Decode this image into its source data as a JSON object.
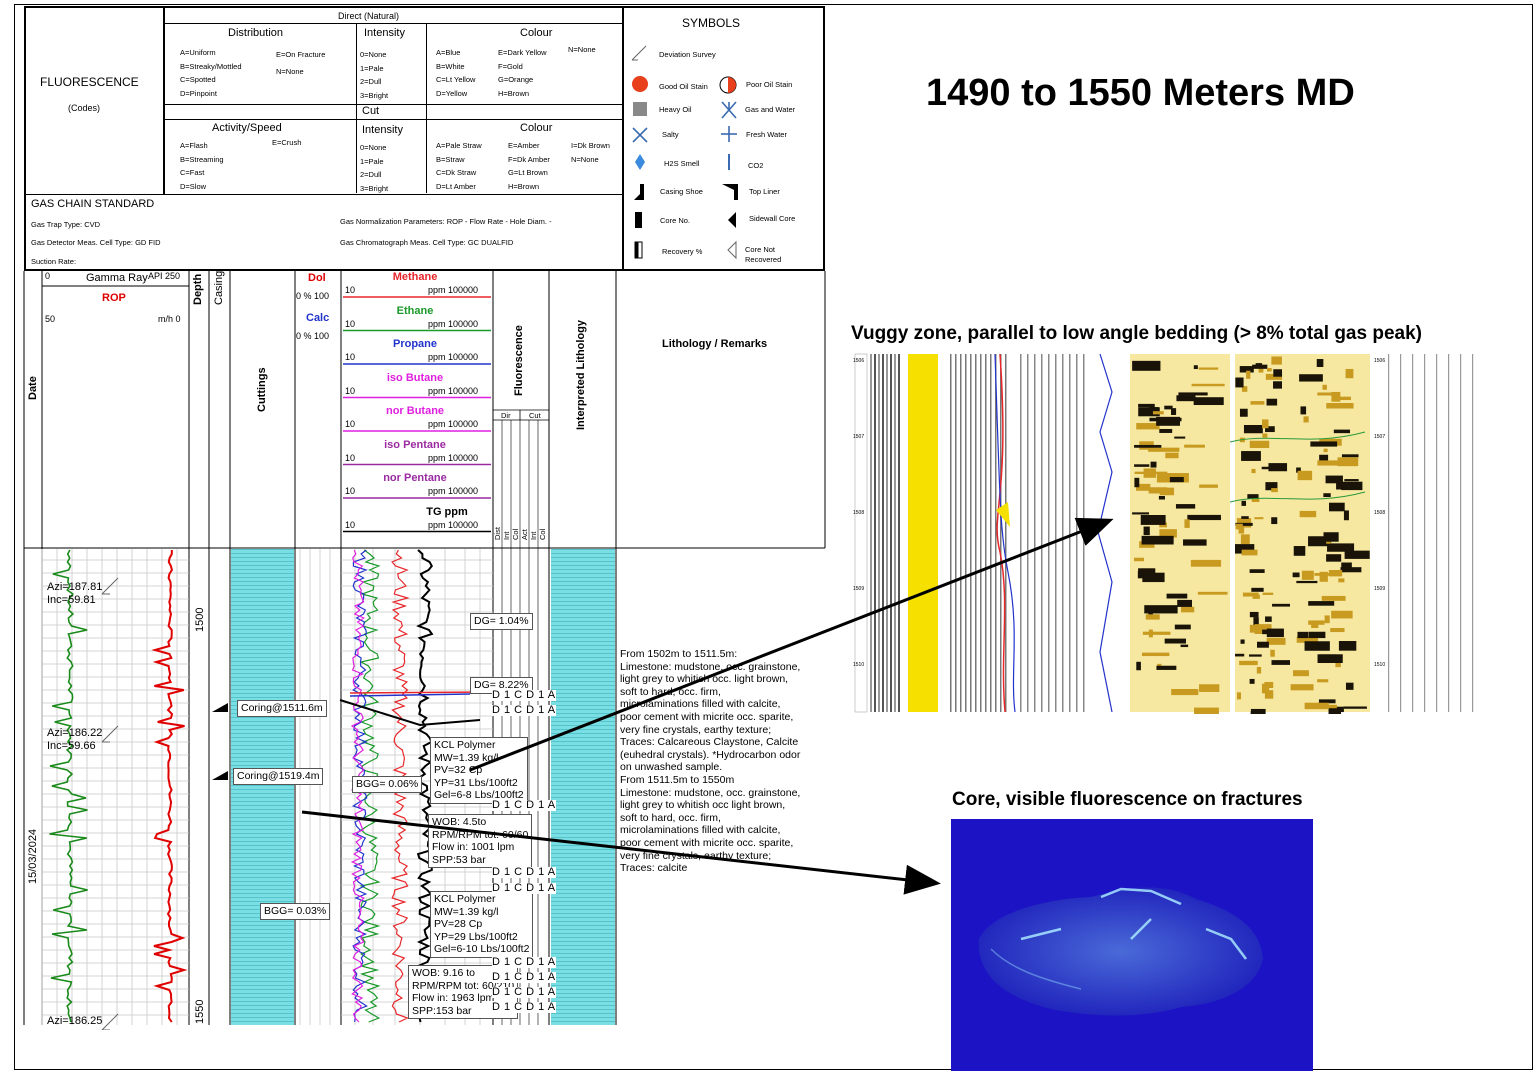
{
  "title": "1490 to 1550 Meters MD",
  "header": {
    "direct_natural": "Direct (Natural)",
    "fluorescence": "FLUORESCENCE",
    "codes": "(Codes)",
    "distribution": "Distribution",
    "dist_col1": [
      "A=Uniform",
      "B=Streaky/Mottled",
      "C=Spotted",
      "D=Pinpoint"
    ],
    "dist_col2": [
      "E=On Fracture",
      "N=None"
    ],
    "intensity": "Intensity",
    "int_items": [
      "0=None",
      "1=Pale",
      "2=Dull",
      "3=Bright"
    ],
    "colour": "Colour",
    "col_c1": [
      "A=Blue",
      "B=White",
      "C=Lt Yellow",
      "D=Yellow"
    ],
    "col_c2": [
      "E=Dark Yellow",
      "F=Gold",
      "G=Orange",
      "H=Brown"
    ],
    "col_c3": [
      "N=None"
    ],
    "cut": "Cut",
    "activity": "Activity/Speed",
    "act_col1": [
      "A=Flash",
      "B=Streaming",
      "C=Fast",
      "D=Slow"
    ],
    "act_col2": [
      "E=Crush"
    ],
    "cut_int": [
      "0=None",
      "1=Pale",
      "2=Dull",
      "3=Bright"
    ],
    "cut_c1": [
      "A=Pale Straw",
      "B=Straw",
      "C=Dk Straw",
      "D=Lt Amber"
    ],
    "cut_c2": [
      "E=Amber",
      "F=Dk Amber",
      "G=Lt Brown",
      "H=Brown"
    ],
    "cut_c3": [
      "I=Dk Brown",
      "N=None"
    ],
    "gas_chain": "GAS CHAIN STANDARD",
    "gas_trap": "Gas Trap Type: CVD",
    "gas_detector": "Gas Detector Meas. Cell Type: GD FID",
    "suction": "Suction Rate:",
    "gas_norm": "Gas Normalization Parameters: ROP - Flow Rate - Hole Diam. -",
    "gas_chrom": "Gas Chromatograph Meas. Cell Type: GC DUALFID"
  },
  "symbols": {
    "heading": "SYMBOLS",
    "deviation": "Deviation Survey",
    "good_oil": "Good Oil Stain",
    "poor_oil": "Poor Oil Stain",
    "heavy_oil": "Heavy Oil",
    "gas_water": "Gas and Water",
    "salty": "Salty",
    "fresh_water": "Fresh Water",
    "h2s": "H2S Smell",
    "co2": "CO2",
    "casing_shoe": "Casing Shoe",
    "top_liner": "Top Liner",
    "core_no": "Core No.",
    "sidewall": "Sidewall Core",
    "recovery": "Recovery %",
    "core_not_1": "Core Not",
    "core_not_2": "Recovered"
  },
  "columns": {
    "date": "Date",
    "gr_min": "0",
    "gr_label": "Gamma Ray",
    "gr_unit": "API 250",
    "rop": "ROP",
    "rop_min": "50",
    "rop_unit": "m/h 0",
    "depth": "Depth",
    "casing": "Casing",
    "cuttings": "Cuttings",
    "dol": "Dol",
    "dol_scale": "0  %  100",
    "calc": "Calc",
    "calc_scale": "0  %  100",
    "gases": [
      {
        "name": "Methane",
        "color": "#e8262a"
      },
      {
        "name": "Ethane",
        "color": "#1a9a2a"
      },
      {
        "name": "Propane",
        "color": "#2233cc"
      },
      {
        "name": "iso Butane",
        "color": "#e020e0"
      },
      {
        "name": "nor Butane",
        "color": "#e020e0"
      },
      {
        "name": "iso Pentane",
        "color": "#9a2aa0"
      },
      {
        "name": "nor Pentane",
        "color": "#9a2aa0"
      },
      {
        "name": "TG ppm",
        "color": "#000000"
      }
    ],
    "gas_min": "10",
    "gas_max": "ppm 100000",
    "fluorescence": "Fluorescence",
    "dir": "Dir",
    "cut": "Cut",
    "fl_sub": [
      "Dist",
      "Int",
      "Col",
      "Act",
      "Int",
      "Col"
    ],
    "interp": "Interpreted Lithology",
    "litho": "Lithology / Remarks"
  },
  "track": {
    "depth_1500": "1500",
    "depth_1550": "1550",
    "date_value": "15/03/2024",
    "azi1": "Azi=187.81",
    "inc1": "Inc=59.81",
    "azi2": "Azi=186.22",
    "inc2": "Inc=59.66",
    "azi3": "Azi=186.25",
    "coring1": "Coring@1511.6m",
    "coring2": "Coring@1519.4m",
    "dg1": "DG= 1.04%",
    "dg2": "DG= 8.22%",
    "bgg1": "BGG= 0.06%",
    "bgg2": "BGG= 0.03%",
    "mud1": [
      "KCL Polymer",
      "MW=1.39 kg/l",
      "PV=32 Cp",
      "YP=31 Lbs/100ft2",
      "Gel=6-8 Lbs/100ft2"
    ],
    "drill1": [
      "WOB: 4.5to",
      "RPM/RPM tot: 60/60",
      "Flow in: 1001 lpm",
      "SPP:53 bar"
    ],
    "mud2": [
      "KCL Polymer",
      "MW=1.39 kg/l",
      "PV=28 Cp",
      "YP=29 Lbs/100ft2",
      "Gel=6-10 Lbs/100ft2"
    ],
    "drill2": [
      "WOB: 9.16 to",
      "RPM/RPM tot: 60/210",
      "Flow in: 1963 lpm",
      "SPP:153 bar"
    ],
    "fl_code": "D 1 C D 1 A"
  },
  "remarks": [
    "From 1502m to 1511.5m:",
    "Limestone: mudstone, occ. grainstone,",
    "light grey to whitish occ. light brown,",
    "soft to hard, occ. firm,",
    "microlaminations filled with calcite,",
    "poor cement with micrite occ. sparite,",
    "very fine crystals, earthy texture;",
    "Traces: Calcareous Claystone, Calcite",
    "(euhedral crystals). *Hydrocarbon odor",
    "on unwashed sample.",
    "From 1511.5m to 1550m",
    "Limestone: mudstone, occ. grainstone,",
    "light grey to whitish occ light brown,",
    "soft to hard, occ. firm,",
    "microlaminations filled with calcite,",
    "poor cement with micrite occ. sparite,",
    "very fine crystals, earthy texture;",
    "Traces: calcite"
  ],
  "image_log": {
    "caption": "Vuggy zone, parallel to low angle bedding (> 8% total gas peak)",
    "ticks": [
      "1506",
      "1507",
      "1508",
      "1509",
      "1510"
    ]
  },
  "core_photo": {
    "caption": "Core, visible fluorescence on fractures"
  },
  "colors": {
    "cyan": "#6fd3d8",
    "gr": "#1a8a1a",
    "rop": "#e00000",
    "methane": "#e8262a",
    "tg": "#000000"
  }
}
